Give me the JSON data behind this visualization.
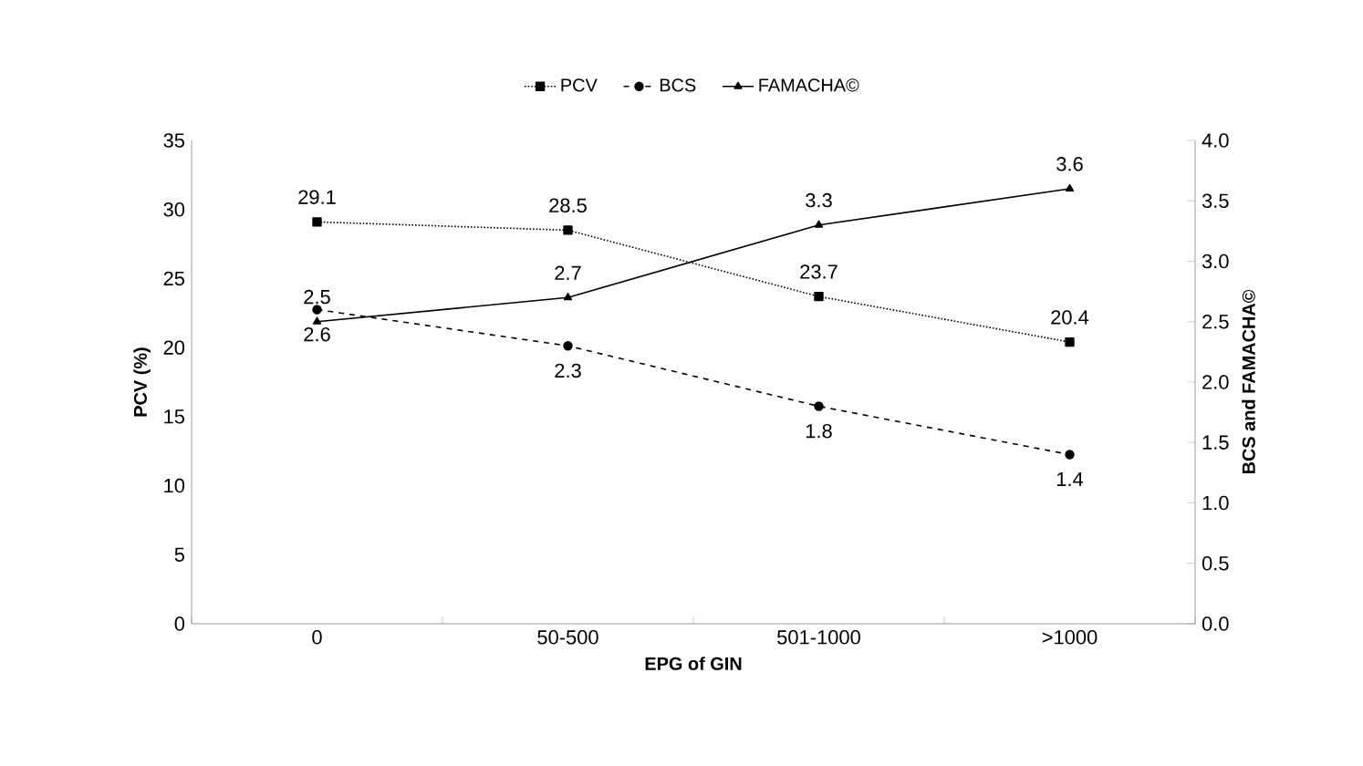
{
  "chart_data": {
    "type": "line",
    "xlabel": "EPG of GIN",
    "ylabel": "PCV (%)",
    "y2label": "BCS and FAMACHA©",
    "categories": [
      "0",
      "50-500",
      "501-1000",
      ">1000"
    ],
    "series": [
      {
        "name": "PCV",
        "color": "#000000",
        "values": [
          29.1,
          28.5,
          23.7,
          20.4
        ],
        "marker": "square",
        "line_style": "dotted"
      },
      {
        "name": "BCS",
        "color": "#000000",
        "values": [
          2.6,
          2.3,
          1.8,
          1.4
        ],
        "marker": "circle",
        "line_style": "dashed",
        "axis": "y2"
      },
      {
        "name": "FAMACHA©",
        "color": "#000000",
        "values": [
          2.5,
          2.7,
          3.3,
          3.6
        ],
        "marker": "triangle",
        "line_style": "solid",
        "axis": "y2"
      }
    ],
    "ylim": [
      0,
      35
    ],
    "yticks": [
      0,
      5,
      10,
      15,
      20,
      25,
      30,
      35
    ],
    "y2lim": [
      0,
      4
    ],
    "y2ticks": [
      {
        "value": 0,
        "label": "0.0"
      },
      {
        "value": 0.5,
        "label": "0.5"
      },
      {
        "value": 1,
        "label": "1.0"
      },
      {
        "value": 1.5,
        "label": "1.5"
      },
      {
        "value": 2,
        "label": "2.0"
      },
      {
        "value": 2.5,
        "label": "2.5"
      },
      {
        "value": 3,
        "label": "3.0"
      },
      {
        "value": 3.5,
        "label": "3.5"
      },
      {
        "value": 4,
        "label": "4.0"
      }
    ],
    "data_labels": true,
    "legend": "top",
    "grid": false
  }
}
